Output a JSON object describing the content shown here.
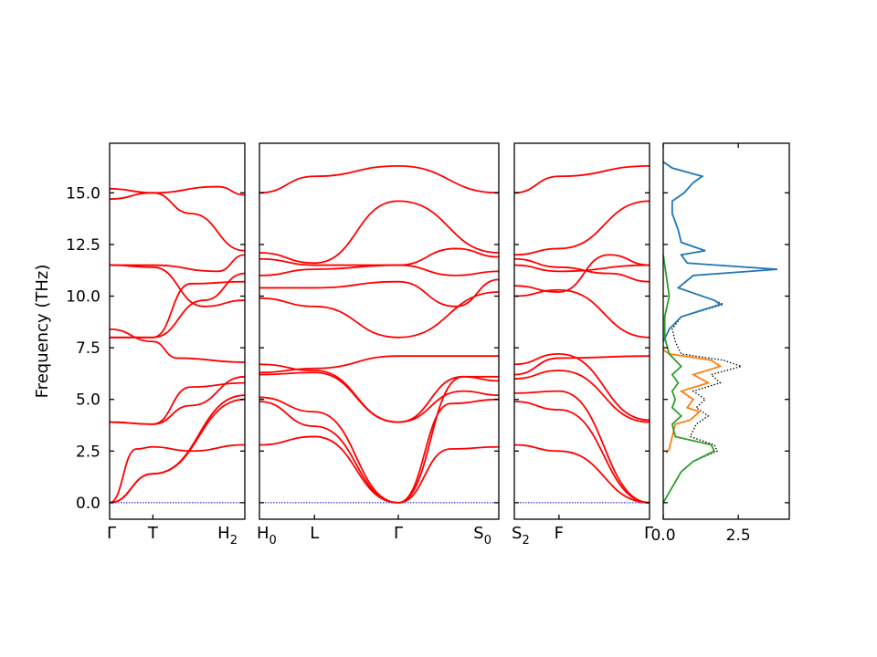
{
  "chart_data": [
    {
      "type": "line",
      "panel": "band-1",
      "ylabel": "Frequency (THz)",
      "ylim": [
        -0.8,
        17.4
      ],
      "yticks": [
        "0.0",
        "2.5",
        "5.0",
        "7.5",
        "10.0",
        "12.5",
        "15.0"
      ],
      "ytick_values": [
        0,
        2.5,
        5,
        7.5,
        10,
        12.5,
        15
      ],
      "xlim": [
        0,
        1
      ],
      "qpoint_labels": [
        {
          "x": 0.0,
          "label": "Γ"
        },
        {
          "x": 0.32,
          "label": "T"
        },
        {
          "x": 1.0,
          "label": "H",
          "sub": "2"
        }
      ],
      "line_color": "#ff0000",
      "zero_line_color": "#0000cc",
      "series": [
        {
          "x": [
            0,
            0.32,
            1
          ],
          "y": [
            0.0,
            1.4,
            5.2
          ]
        },
        {
          "x": [
            0,
            0.32,
            1
          ],
          "y": [
            0.0,
            1.4,
            5.0
          ]
        },
        {
          "x": [
            0,
            0.2,
            0.32,
            0.6,
            1
          ],
          "y": [
            0.0,
            2.6,
            2.7,
            2.5,
            2.8
          ]
        },
        {
          "x": [
            0,
            0.32,
            0.6,
            1
          ],
          "y": [
            3.9,
            3.8,
            4.7,
            6.1
          ]
        },
        {
          "x": [
            0,
            0.32,
            0.6,
            1
          ],
          "y": [
            3.9,
            3.8,
            5.6,
            5.8
          ]
        },
        {
          "x": [
            0,
            0.32,
            0.5,
            1
          ],
          "y": [
            8.4,
            7.8,
            7.0,
            6.8
          ]
        },
        {
          "x": [
            0,
            0.32,
            0.6,
            1
          ],
          "y": [
            8.0,
            8.0,
            10.6,
            10.7
          ]
        },
        {
          "x": [
            0,
            0.32,
            0.7,
            1
          ],
          "y": [
            8.0,
            8.0,
            9.8,
            11.1
          ]
        },
        {
          "x": [
            0,
            0.32,
            0.7,
            1
          ],
          "y": [
            11.5,
            11.4,
            9.5,
            9.8
          ]
        },
        {
          "x": [
            0,
            0.32,
            0.8,
            1
          ],
          "y": [
            11.5,
            11.5,
            11.2,
            12.0
          ]
        },
        {
          "x": [
            0,
            0.32,
            0.6,
            1
          ],
          "y": [
            14.7,
            15.0,
            14.0,
            12.2
          ]
        },
        {
          "x": [
            0,
            0.32,
            0.8,
            1
          ],
          "y": [
            15.2,
            15.0,
            15.3,
            14.9
          ]
        }
      ]
    },
    {
      "type": "line",
      "panel": "band-2",
      "ylim": [
        -0.8,
        17.4
      ],
      "xlim": [
        0,
        1
      ],
      "qpoint_labels": [
        {
          "x": 0.0,
          "label": "H",
          "sub": "0"
        },
        {
          "x": 0.23,
          "label": "L"
        },
        {
          "x": 0.58,
          "label": "Γ"
        },
        {
          "x": 1.0,
          "label": "S",
          "sub": "0"
        }
      ],
      "line_color": "#ff0000",
      "zero_line_color": "#0000cc",
      "series": [
        {
          "x": [
            0,
            0.23,
            0.58,
            0.8,
            1
          ],
          "y": [
            2.8,
            3.2,
            0.0,
            2.6,
            2.7
          ]
        },
        {
          "x": [
            0,
            0.23,
            0.58,
            0.8,
            1
          ],
          "y": [
            4.9,
            3.7,
            0.0,
            4.8,
            5.0
          ]
        },
        {
          "x": [
            0,
            0.23,
            0.58,
            0.85,
            1
          ],
          "y": [
            5.1,
            4.4,
            0.0,
            6.1,
            5.9
          ]
        },
        {
          "x": [
            0,
            0.23,
            0.58,
            0.85,
            1
          ],
          "y": [
            6.2,
            6.3,
            3.9,
            5.4,
            5.2
          ]
        },
        {
          "x": [
            0,
            0.23,
            0.58,
            0.85,
            1
          ],
          "y": [
            6.7,
            6.4,
            3.9,
            6.1,
            6.1
          ]
        },
        {
          "x": [
            0,
            0.23,
            0.58,
            1
          ],
          "y": [
            6.3,
            6.5,
            7.1,
            7.1
          ]
        },
        {
          "x": [
            0,
            0.23,
            0.58,
            1
          ],
          "y": [
            9.9,
            9.5,
            8.0,
            10.2
          ]
        },
        {
          "x": [
            0,
            0.23,
            0.58,
            0.82,
            1
          ],
          "y": [
            10.4,
            10.4,
            10.7,
            9.5,
            10.8
          ]
        },
        {
          "x": [
            0,
            0.23,
            0.58,
            0.82,
            1
          ],
          "y": [
            11.0,
            11.3,
            11.5,
            11.0,
            11.2
          ]
        },
        {
          "x": [
            0,
            0.23,
            0.58,
            0.82,
            1
          ],
          "y": [
            11.8,
            11.5,
            11.5,
            12.3,
            11.9
          ]
        },
        {
          "x": [
            0,
            0.23,
            0.58,
            1
          ],
          "y": [
            12.1,
            11.6,
            14.6,
            12.1
          ]
        },
        {
          "x": [
            0,
            0.23,
            0.58,
            1
          ],
          "y": [
            15.0,
            15.8,
            16.3,
            15.0
          ]
        }
      ]
    },
    {
      "type": "line",
      "panel": "band-3",
      "ylim": [
        -0.8,
        17.4
      ],
      "xlim": [
        0,
        1
      ],
      "qpoint_labels": [
        {
          "x": 0.0,
          "label": "S",
          "sub": "2"
        },
        {
          "x": 0.33,
          "label": "F"
        },
        {
          "x": 1.0,
          "label": "Γ"
        }
      ],
      "line_color": "#ff0000",
      "zero_line_color": "#0000cc",
      "series": [
        {
          "x": [
            0,
            0.33,
            1
          ],
          "y": [
            2.8,
            2.5,
            0.0
          ]
        },
        {
          "x": [
            0,
            0.33,
            1
          ],
          "y": [
            4.9,
            4.5,
            0.0
          ]
        },
        {
          "x": [
            0,
            0.33,
            1
          ],
          "y": [
            5.3,
            5.4,
            0.0
          ]
        },
        {
          "x": [
            0,
            0.33,
            1
          ],
          "y": [
            6.0,
            6.4,
            3.9
          ]
        },
        {
          "x": [
            0,
            0.33,
            1
          ],
          "y": [
            6.7,
            7.2,
            4.0
          ]
        },
        {
          "x": [
            0,
            0.33,
            1
          ],
          "y": [
            6.2,
            7.0,
            7.1
          ]
        },
        {
          "x": [
            0,
            0.33,
            1
          ],
          "y": [
            10.0,
            10.3,
            8.0
          ]
        },
        {
          "x": [
            0,
            0.33,
            0.7,
            1
          ],
          "y": [
            10.5,
            10.2,
            12.0,
            11.5
          ]
        },
        {
          "x": [
            0,
            0.33,
            1
          ],
          "y": [
            11.5,
            11.2,
            11.5
          ]
        },
        {
          "x": [
            0,
            0.33,
            0.7,
            1
          ],
          "y": [
            11.8,
            11.4,
            11.1,
            10.7
          ]
        },
        {
          "x": [
            0,
            0.33,
            1
          ],
          "y": [
            12.0,
            12.3,
            14.6
          ]
        },
        {
          "x": [
            0,
            0.33,
            1
          ],
          "y": [
            15.0,
            15.8,
            16.3
          ]
        }
      ]
    },
    {
      "type": "line",
      "panel": "dos",
      "ylim": [
        -0.8,
        17.4
      ],
      "xlim": [
        0,
        4.2
      ],
      "xticks": [
        "0.0",
        "2.5"
      ],
      "xtick_values": [
        0,
        2.5
      ],
      "series": [
        {
          "color": "#000000",
          "style": "dotted",
          "y": [
            0.0,
            0.5,
            1.0,
            1.5,
            2.0,
            2.5,
            2.8,
            3.2,
            3.8,
            4.2,
            4.6,
            5.0,
            5.4,
            5.8,
            6.2,
            6.6,
            6.9,
            7.2,
            7.8,
            8.4,
            9.0,
            9.6,
            9.8,
            10.4,
            11.0,
            11.3,
            11.6,
            12.0,
            12.2,
            12.6,
            13.2,
            14.0,
            14.6,
            15.0,
            15.5,
            15.8,
            16.2,
            16.5
          ],
          "x": [
            0.0,
            0.2,
            0.4,
            0.6,
            1.0,
            1.8,
            1.7,
            0.9,
            1.1,
            1.5,
            1.1,
            1.4,
            1.0,
            1.9,
            1.6,
            2.6,
            2.0,
            0.6,
            0.4,
            0.3,
            0.6,
            2.0,
            1.7,
            0.5,
            1.0,
            3.8,
            0.8,
            0.6,
            1.4,
            0.6,
            0.5,
            0.3,
            0.3,
            0.7,
            1.0,
            1.3,
            0.3,
            0.0
          ]
        },
        {
          "color": "#1f77b4",
          "style": "solid",
          "y": [
            7.8,
            8.4,
            9.0,
            9.6,
            9.8,
            10.4,
            11.0,
            11.3,
            11.6,
            12.0,
            12.2,
            12.6,
            13.2,
            14.0,
            14.6,
            15.0,
            15.5,
            15.8,
            16.2,
            16.5
          ],
          "x": [
            0.0,
            0.2,
            0.6,
            1.9,
            1.7,
            0.5,
            1.0,
            3.8,
            0.8,
            0.6,
            1.4,
            0.6,
            0.5,
            0.3,
            0.3,
            0.7,
            1.0,
            1.3,
            0.3,
            0.0
          ]
        },
        {
          "color": "#ff7f0e",
          "style": "solid",
          "y": [
            2.4,
            2.6,
            3.2,
            3.8,
            4.0,
            4.4,
            4.6,
            5.0,
            5.4,
            5.8,
            6.2,
            6.6,
            6.9,
            7.2,
            7.4
          ],
          "x": [
            0.1,
            0.2,
            0.3,
            0.4,
            0.9,
            1.2,
            0.8,
            1.0,
            0.6,
            1.5,
            1.0,
            1.9,
            1.6,
            0.2,
            0.0
          ]
        },
        {
          "color": "#2ca02c",
          "style": "solid",
          "y": [
            0.0,
            0.5,
            1.0,
            1.5,
            2.0,
            2.5,
            2.8,
            3.2,
            3.8,
            4.2,
            4.6,
            5.0,
            5.4,
            5.8,
            6.2,
            6.6,
            6.9,
            7.2,
            8.0,
            9.0,
            10.0,
            11.0,
            12.0
          ],
          "x": [
            0.0,
            0.2,
            0.4,
            0.6,
            1.0,
            1.7,
            1.6,
            0.4,
            0.3,
            0.6,
            0.3,
            0.4,
            0.3,
            0.5,
            0.3,
            0.6,
            0.4,
            0.2,
            0.05,
            0.05,
            0.2,
            0.1,
            0.0
          ]
        }
      ]
    }
  ]
}
